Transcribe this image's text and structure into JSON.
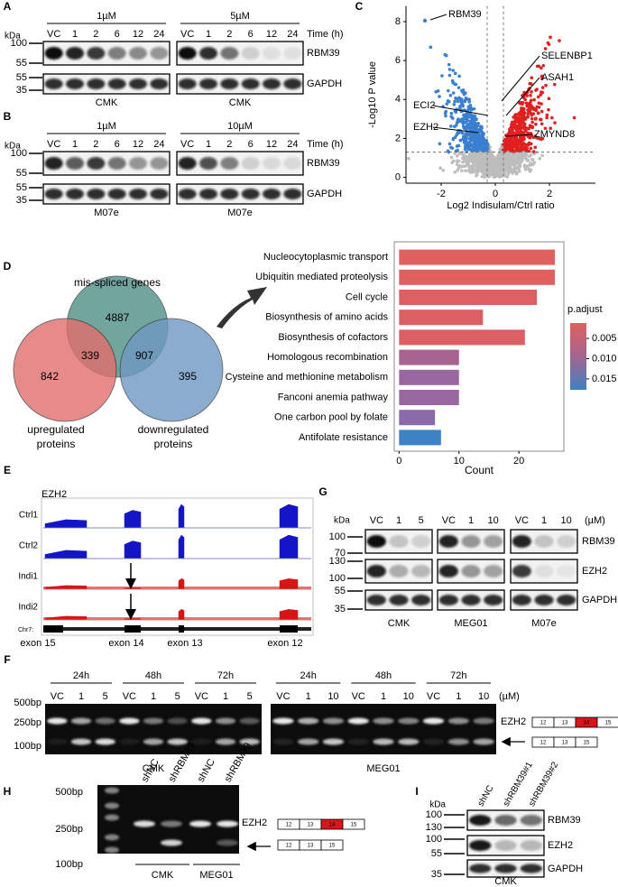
{
  "panels": {
    "A": {
      "label": "A",
      "kda": "kDa",
      "conc": [
        "1µM",
        "5µM"
      ],
      "lanes": [
        "VC",
        "1",
        "2",
        "6",
        "12",
        "24"
      ],
      "time": "Time (h)",
      "markers": [
        "100",
        "55",
        "55",
        "35"
      ],
      "proteins": [
        "RBM39",
        "GAPDH"
      ],
      "cells": [
        "CMK",
        "CMK"
      ]
    },
    "B": {
      "label": "B",
      "kda": "kDa",
      "conc": [
        "1µM",
        "10µM"
      ],
      "lanes": [
        "VC",
        "1",
        "2",
        "6",
        "12",
        "24"
      ],
      "time": "Time (h)",
      "markers": [
        "100",
        "55",
        "55",
        "35"
      ],
      "proteins": [
        "RBM39",
        "GAPDH"
      ],
      "cells": [
        "M07e",
        "M07e"
      ]
    },
    "C": {
      "label": "C",
      "volcano": {
        "type": "scatter",
        "x_label": "Log2 Indisulam/Ctrl ratio",
        "y_label": "-Log10 P value",
        "xlim": [
          -3.3,
          3.7
        ],
        "ylim": [
          -0.3,
          8.8
        ],
        "xticks": [
          -2,
          0,
          2
        ],
        "yticks": [
          0,
          2,
          4,
          6,
          8
        ],
        "annotations": [
          "RBM39",
          "SELENBP1",
          "ASAH1",
          "ECI2",
          "EZH2",
          "ZMYND8"
        ]
      }
    },
    "D": {
      "label": "D",
      "venn": {
        "title": "mis-spliced genes",
        "counts": [
          "4887",
          "339",
          "907",
          "842",
          "395"
        ],
        "up_label": [
          "upregulated",
          "proteins"
        ],
        "down_label": [
          "downregulated",
          "proteins"
        ]
      },
      "enrichment": {
        "type": "bar",
        "categories": [
          "Nucleocytoplasmic transport",
          "Ubiquitin mediated proteolysis",
          "Cell cycle",
          "Biosynthesis of amino acids",
          "Biosynthesis of cofactors",
          "Homologous recombination",
          "Cysteine and methionine metabolism",
          "Fanconi anemia pathway",
          "One carbon pool by folate",
          "Antifolate resistance"
        ],
        "values": [
          26,
          26,
          23,
          14,
          21,
          10,
          10,
          10,
          6,
          7
        ],
        "colors": [
          "#e0605f",
          "#e0605f",
          "#de5f62",
          "#dc5f64",
          "#dc5f64",
          "#a6648f",
          "#9a68a0",
          "#9a68a0",
          "#8a6aa8",
          "#3d82c4"
        ],
        "xlim": [
          -0.8,
          27.5
        ],
        "xticks": [
          0,
          10,
          20
        ],
        "x_label": "Count",
        "legend_title": "p.adjust",
        "legend_lim": [
          0.0012,
          0.0177
        ],
        "legend_ticks": [
          0.005,
          {
            "value": 0.01,
            "label": "0.010"
          },
          0.015
        ]
      }
    },
    "E": {
      "label": "E",
      "gene": "EZH2",
      "tracks": [
        "Ctrl1",
        "Ctrl2",
        "Indi1",
        "Indi2"
      ],
      "chrom": "Chr7:",
      "exons": [
        "exon 15",
        "exon 14",
        "exon 13",
        "exon 12"
      ]
    },
    "G": {
      "label": "G",
      "kda": "kDa",
      "lanes": [
        [
          "VC",
          "1",
          "5"
        ],
        [
          "VC",
          "1",
          "10"
        ],
        [
          "VC",
          "1",
          "10"
        ]
      ],
      "unit": "(µM)",
      "markers": [
        "100",
        "70",
        "130",
        "100",
        "55",
        "35"
      ],
      "proteins": [
        "RBM39",
        "EZH2",
        "GAPDH"
      ],
      "cells": [
        "CMK",
        "MEG01",
        "M07e"
      ]
    },
    "F": {
      "label": "F",
      "times": [
        "24h",
        "48h",
        "72h"
      ],
      "lanes": [
        [
          "VC",
          "1",
          "5"
        ],
        [
          "VC",
          "1",
          "10"
        ]
      ],
      "unit": "(µM)",
      "sizes": [
        "500bp",
        "250bp",
        "100bp"
      ],
      "gene": "EZH2",
      "exons_full": [
        "12",
        "13",
        "14",
        "15"
      ],
      "exons_skip": [
        "12",
        "13",
        "15"
      ],
      "cells": [
        "CMK",
        "MEG01"
      ]
    },
    "H": {
      "label": "H",
      "sizes": [
        "500bp",
        "250bp",
        "100bp"
      ],
      "lanes": [
        "shNC",
        "shRBM39",
        "shNC",
        "shRBM39"
      ],
      "gene": "EZH2",
      "exons_full": [
        "12",
        "13",
        "14",
        "15"
      ],
      "exons_skip": [
        "12",
        "13",
        "15"
      ],
      "cells": [
        "CMK",
        "MEG01"
      ]
    },
    "I": {
      "label": "I",
      "kda": "kDa",
      "lanes": [
        "shNC",
        "shRBM39#1",
        "shRBM39#2"
      ],
      "markers": [
        "100",
        "130",
        "100",
        "55",
        "35"
      ],
      "proteins": [
        "RBM39",
        "EZH2",
        "GAPDH"
      ],
      "cell": "CMK"
    }
  }
}
